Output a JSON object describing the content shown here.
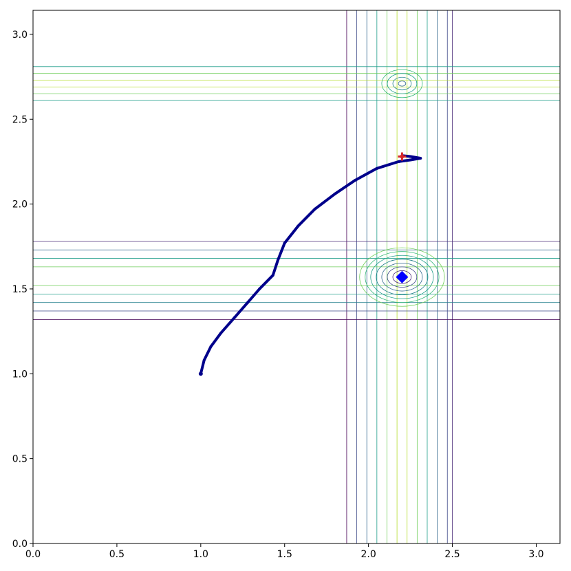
{
  "chart_data": {
    "type": "contour",
    "title": "",
    "xlabel": "",
    "ylabel": "",
    "xlim": [
      0,
      3.1416
    ],
    "ylim": [
      0,
      3.1416
    ],
    "grid": false,
    "legend": null,
    "x_ticks": [
      0.0,
      0.5,
      1.0,
      1.5,
      2.0,
      2.5,
      3.0
    ],
    "y_ticks": [
      0.0,
      0.5,
      1.0,
      1.5,
      2.0,
      2.5,
      3.0
    ],
    "x_tick_labels": [
      "0.0",
      "0.5",
      "1.0",
      "1.5",
      "2.0",
      "2.5",
      "3.0"
    ],
    "y_tick_labels": [
      "0.0",
      "0.5",
      "1.0",
      "1.5",
      "2.0",
      "2.5",
      "3.0"
    ],
    "contour": {
      "colormap": "viridis",
      "minimum": {
        "x": 2.2,
        "y": 1.57
      },
      "secondary_minimum": {
        "x": 2.2,
        "y": 2.71
      },
      "vertical_bands_x": [
        1.87,
        1.93,
        1.99,
        2.05,
        2.11,
        2.17,
        2.23,
        2.29,
        2.35,
        2.41,
        2.47,
        2.5
      ],
      "horizontal_band_lower_y": [
        1.32,
        1.37,
        1.42,
        1.47,
        1.52,
        1.63,
        1.68,
        1.73,
        1.78
      ],
      "horizontal_band_upper_y": [
        2.61,
        2.65,
        2.69,
        2.73,
        2.77,
        2.81
      ]
    },
    "series": [
      {
        "kind": "trajectory",
        "color": "#00008b",
        "points": [
          [
            1.0,
            1.0
          ],
          [
            1.02,
            1.08
          ],
          [
            1.06,
            1.16
          ],
          [
            1.12,
            1.24
          ],
          [
            1.2,
            1.33
          ],
          [
            1.28,
            1.42
          ],
          [
            1.35,
            1.5
          ],
          [
            1.43,
            1.58
          ],
          [
            1.46,
            1.67
          ],
          [
            1.5,
            1.77
          ],
          [
            1.58,
            1.87
          ],
          [
            1.68,
            1.97
          ],
          [
            1.8,
            2.06
          ],
          [
            1.92,
            2.14
          ],
          [
            2.05,
            2.21
          ],
          [
            2.18,
            2.25
          ],
          [
            2.25,
            2.26
          ],
          [
            2.31,
            2.27
          ],
          [
            2.25,
            2.28
          ],
          [
            2.2,
            2.285
          ]
        ]
      }
    ],
    "markers": [
      {
        "name": "start",
        "x": 1.0,
        "y": 1.0,
        "shape": "dot",
        "color": "#00008b"
      },
      {
        "name": "end",
        "x": 2.2,
        "y": 2.28,
        "shape": "plus",
        "color": "#d62728"
      },
      {
        "name": "target",
        "x": 2.2,
        "y": 1.57,
        "shape": "diamond",
        "color": "#0000ff"
      }
    ]
  }
}
